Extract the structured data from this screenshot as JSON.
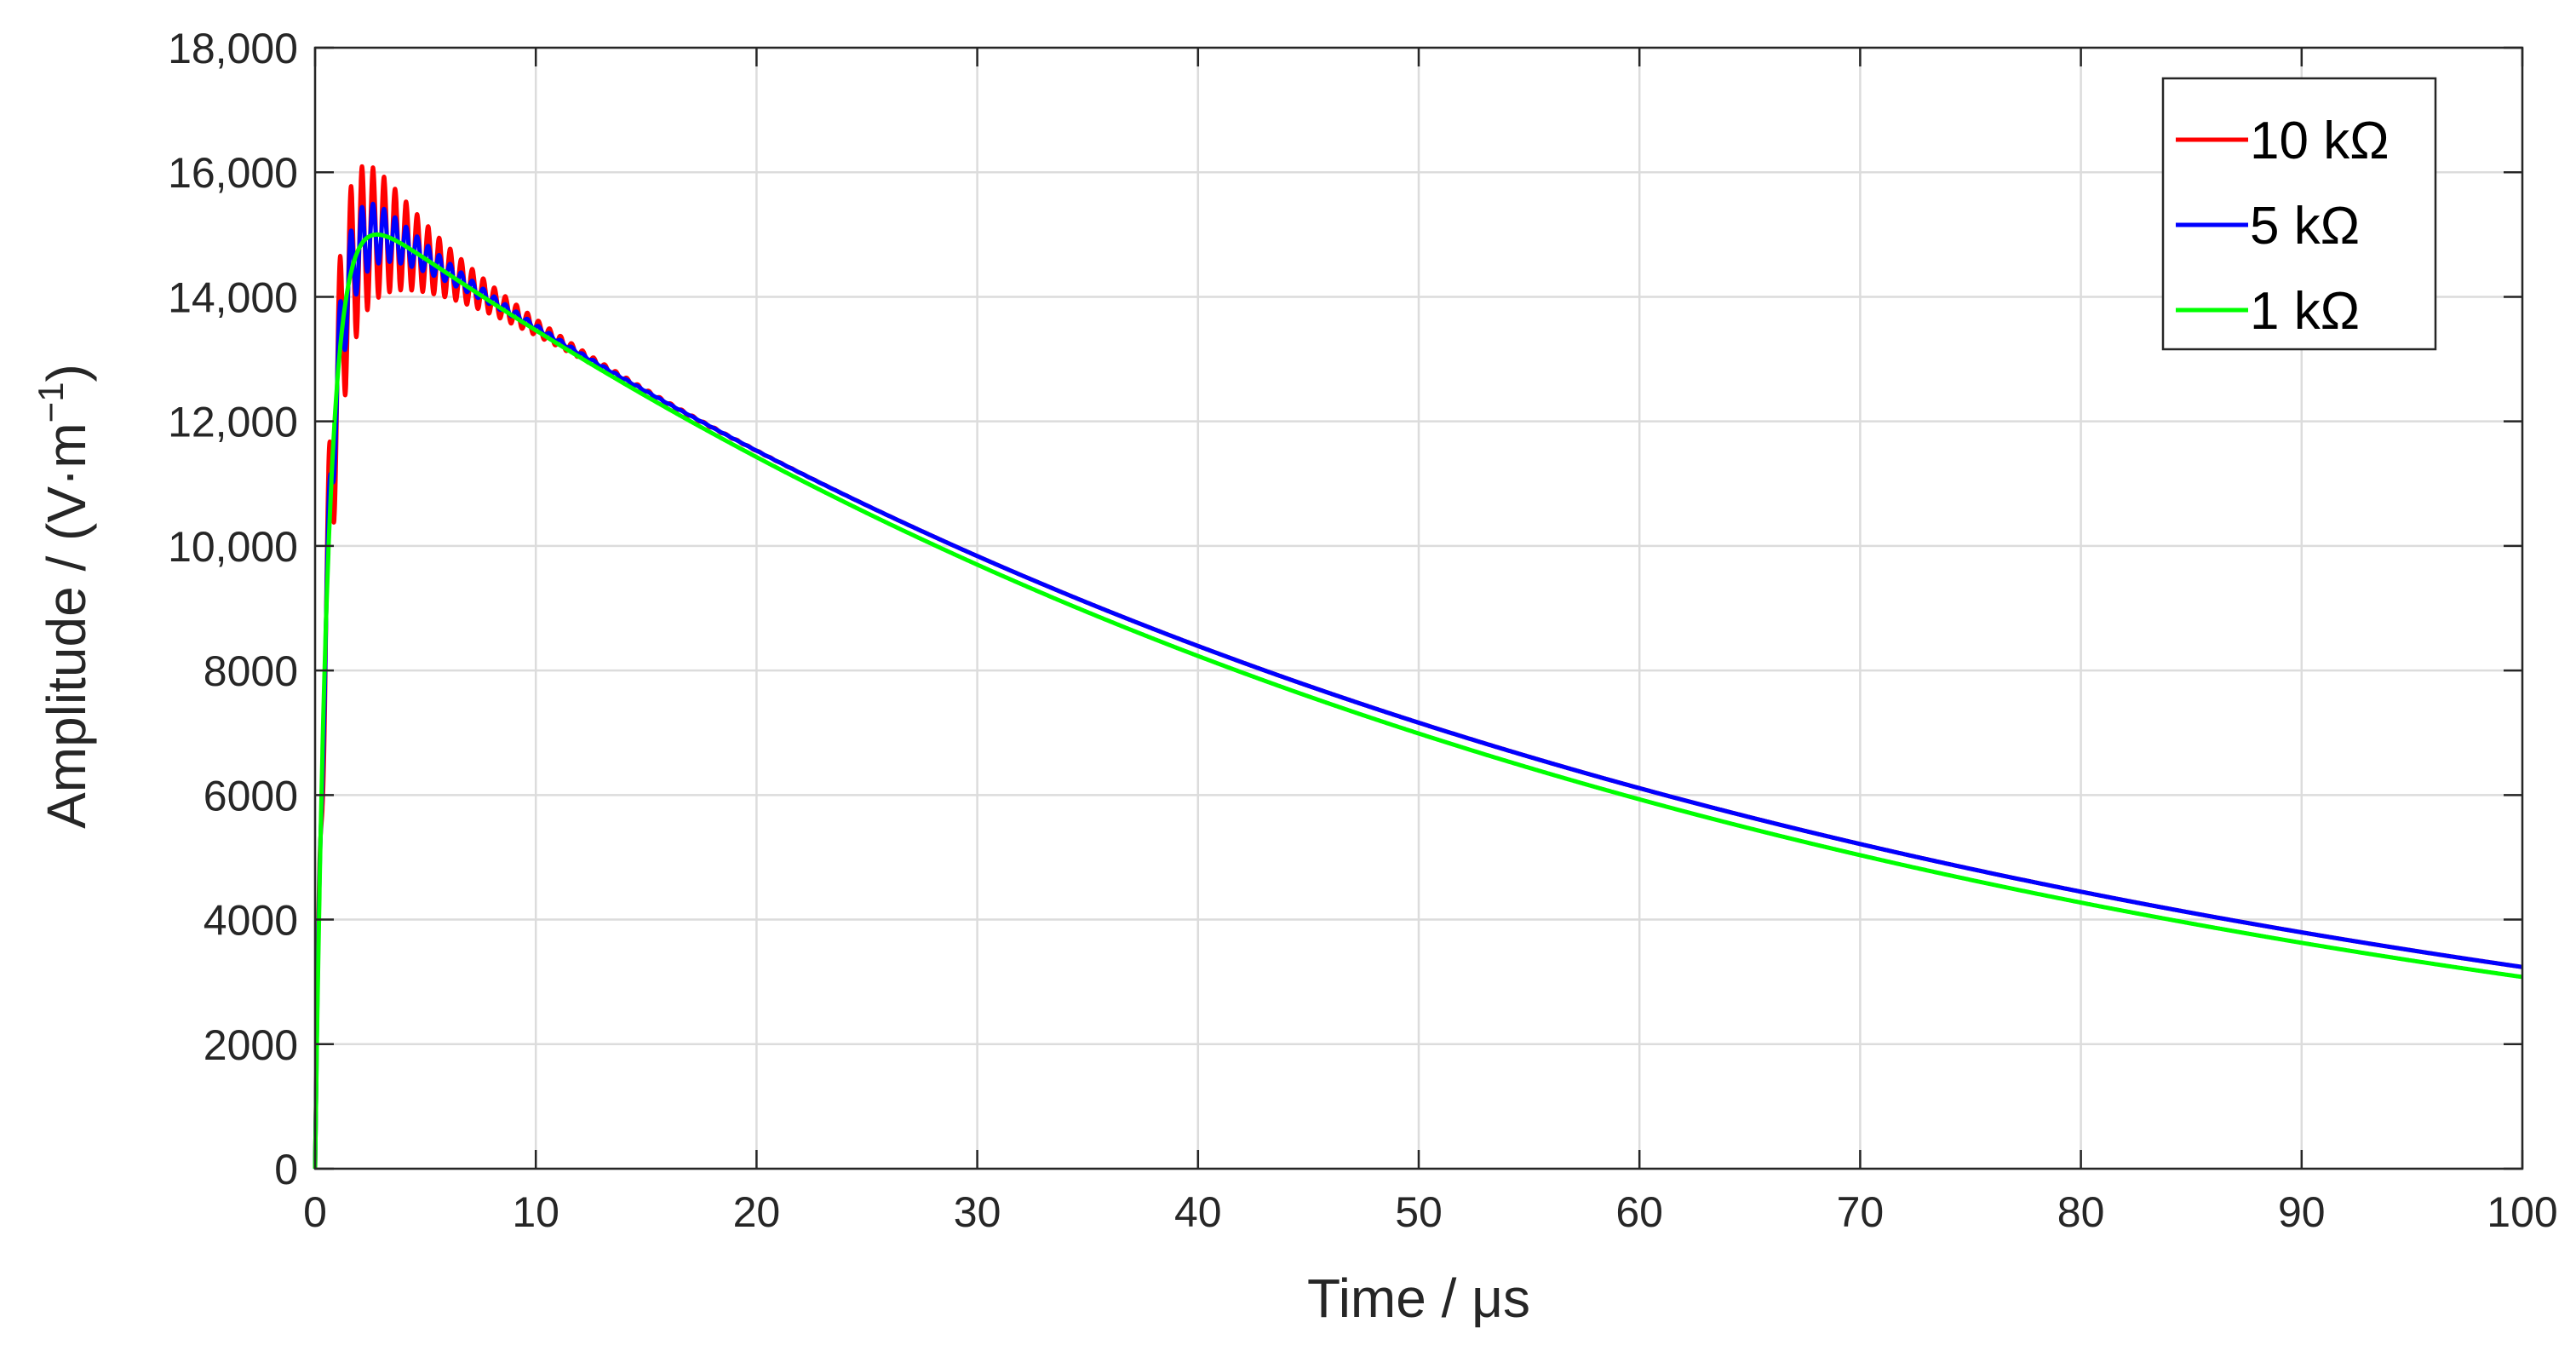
{
  "chart_data": {
    "type": "line",
    "xlabel": "Time / μs",
    "ylabel": "Amplitude / (V·m",
    "ylabel_sup": "−1",
    "ylabel_close": ")",
    "xlim": [
      0,
      100
    ],
    "ylim": [
      0,
      18000
    ],
    "xticks": [
      0,
      10,
      20,
      30,
      40,
      50,
      60,
      70,
      80,
      90,
      100
    ],
    "yticks": [
      0,
      2000,
      4000,
      6000,
      8000,
      10000,
      12000,
      14000,
      16000,
      18000
    ],
    "xtick_labels": [
      "0",
      "10",
      "20",
      "30",
      "40",
      "50",
      "60",
      "70",
      "80",
      "90",
      "100"
    ],
    "ytick_labels": [
      "0",
      "2000",
      "4000",
      "6000",
      "8000",
      "10,000",
      "12,000",
      "14,000",
      "16,000",
      "18,000"
    ],
    "grid": true,
    "legend_position": "top-right",
    "series": [
      {
        "name": "10 kΩ",
        "color": "#ff0000",
        "decay_us": 63.0,
        "rise_us": 0.6,
        "peak": 15000,
        "ripple": 1050,
        "ripple_period_us": 0.5,
        "ripple_decay_us": 3.5,
        "end_value": 3520
      },
      {
        "name": "5 kΩ",
        "color": "#0000ff",
        "decay_us": 63.0,
        "rise_us": 0.6,
        "peak": 15000,
        "ripple": 550,
        "ripple_period_us": 0.5,
        "ripple_decay_us": 3.0,
        "end_value": 3520
      },
      {
        "name": "1 kΩ",
        "color": "#00ff00",
        "decay_us": 61.0,
        "rise_us": 0.6,
        "peak": 15000,
        "ripple": 0,
        "ripple_period_us": 0.5,
        "ripple_decay_us": 1.0,
        "end_value": 3390
      }
    ]
  }
}
